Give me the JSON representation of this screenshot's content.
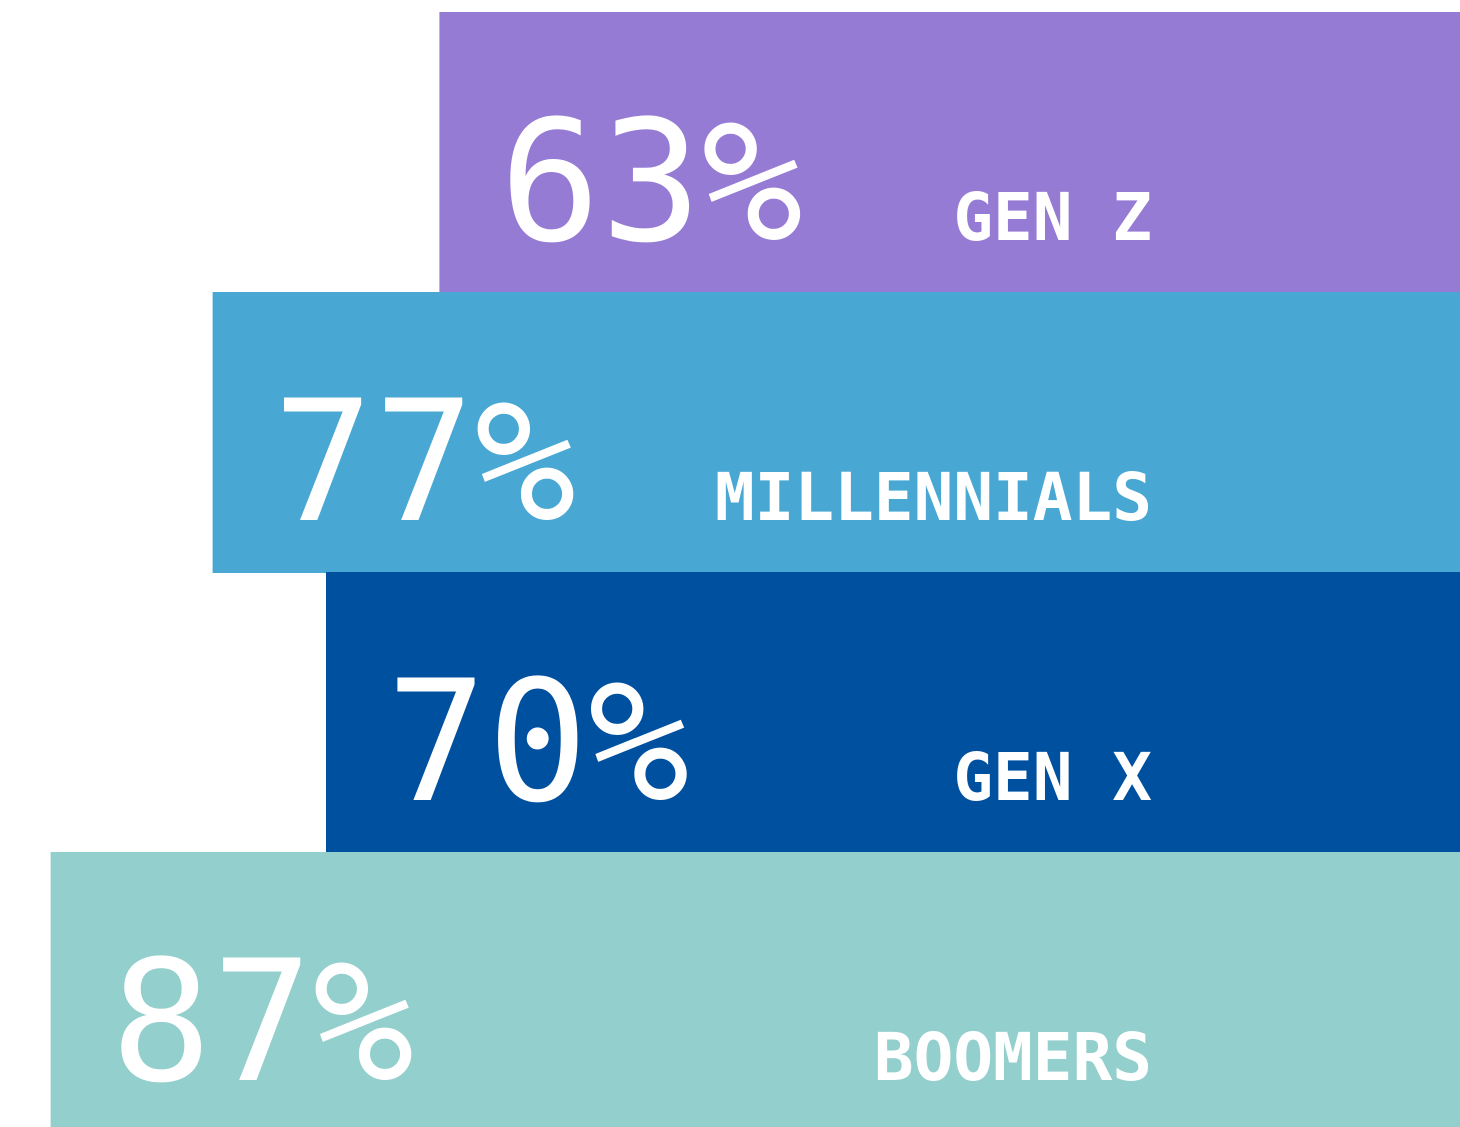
{
  "chart_data": {
    "type": "bar",
    "orientation": "horizontal",
    "categories": [
      "GEN Z",
      "MILLENNIALS",
      "GEN X",
      "BOOMERS"
    ],
    "values": [
      63,
      77,
      70,
      87
    ],
    "value_labels": [
      "63%",
      "77%",
      "70%",
      "87%"
    ],
    "colors": [
      "#967bd5",
      "#49a8d3",
      "#0050a0",
      "#93cfcc"
    ]
  }
}
